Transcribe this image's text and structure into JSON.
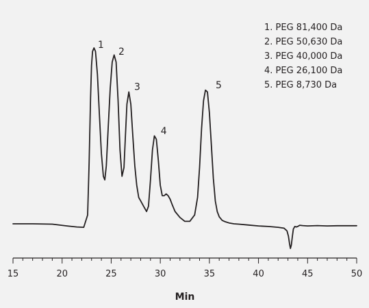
{
  "chart_data": {
    "type": "line",
    "title": "",
    "xlabel": "Min",
    "ylabel": "",
    "xlim": [
      15,
      50
    ],
    "xticks": [
      15,
      20,
      25,
      30,
      35,
      40,
      45,
      50
    ],
    "minor_tick_step": 1,
    "grid": false,
    "legend_position": "top-right",
    "line_color": "#231f20",
    "background": "#f2f2f2",
    "series": [
      {
        "x": [
          15.0,
          17.0,
          19.0,
          20.5,
          21.5,
          22.2,
          22.6,
          22.75,
          22.9,
          23.0,
          23.1,
          23.25,
          23.4,
          23.6,
          23.8,
          24.0,
          24.2,
          24.35,
          24.5,
          24.7,
          24.9,
          25.1,
          25.3,
          25.5,
          25.7,
          25.9,
          26.1,
          26.3,
          26.45,
          26.6,
          26.8,
          27.0,
          27.2,
          27.4,
          27.6,
          27.8,
          28.0,
          28.2,
          28.4,
          28.6,
          28.8,
          29.0,
          29.2,
          29.4,
          29.6,
          29.8,
          30.0,
          30.2,
          30.4,
          30.6,
          30.8,
          31.0,
          31.2,
          31.5,
          32.0,
          32.5,
          33.0,
          33.5,
          33.8,
          34.0,
          34.2,
          34.4,
          34.6,
          34.8,
          35.0,
          35.2,
          35.4,
          35.6,
          35.8,
          36.0,
          36.3,
          36.6,
          37.0,
          37.5,
          38.0,
          39.0,
          40.0,
          41.0,
          42.0,
          42.6,
          42.9,
          43.05,
          43.15,
          43.25,
          43.35,
          43.45,
          43.55,
          43.7,
          43.85,
          44.0,
          44.2,
          44.5,
          45.0,
          46.0,
          47.0,
          48.0,
          49.0,
          50.0
        ],
        "y": [
          0.0,
          0.0,
          -0.002,
          -0.012,
          -0.018,
          -0.02,
          0.05,
          0.35,
          0.72,
          0.9,
          0.98,
          1.0,
          0.98,
          0.85,
          0.62,
          0.4,
          0.27,
          0.25,
          0.33,
          0.55,
          0.77,
          0.92,
          0.96,
          0.92,
          0.7,
          0.42,
          0.27,
          0.32,
          0.5,
          0.68,
          0.75,
          0.68,
          0.5,
          0.33,
          0.22,
          0.15,
          0.13,
          0.11,
          0.09,
          0.07,
          0.1,
          0.25,
          0.42,
          0.5,
          0.48,
          0.36,
          0.22,
          0.16,
          0.16,
          0.17,
          0.16,
          0.14,
          0.11,
          0.07,
          0.036,
          0.014,
          0.014,
          0.05,
          0.15,
          0.32,
          0.54,
          0.7,
          0.76,
          0.75,
          0.63,
          0.45,
          0.26,
          0.13,
          0.07,
          0.04,
          0.02,
          0.012,
          0.005,
          0.0,
          -0.002,
          -0.007,
          -0.012,
          -0.015,
          -0.02,
          -0.025,
          -0.04,
          -0.07,
          -0.11,
          -0.14,
          -0.12,
          -0.07,
          -0.03,
          -0.015,
          -0.018,
          -0.015,
          -0.008,
          -0.01,
          -0.012,
          -0.01,
          -0.012,
          -0.011,
          -0.011,
          -0.011
        ]
      }
    ],
    "peak_labels": [
      {
        "label": "1",
        "x": 23.5,
        "y": 1.02
      },
      {
        "label": "2",
        "x": 25.6,
        "y": 0.98
      },
      {
        "label": "3",
        "x": 27.2,
        "y": 0.78
      },
      {
        "label": "4",
        "x": 29.9,
        "y": 0.53
      },
      {
        "label": "5",
        "x": 35.5,
        "y": 0.79
      }
    ],
    "legend": [
      "1. PEG 81,400 Da",
      "2. PEG 50,630 Da",
      "3. PEG 40,000 Da",
      "4. PEG 26,100 Da",
      "5. PEG 8,730 Da"
    ]
  }
}
